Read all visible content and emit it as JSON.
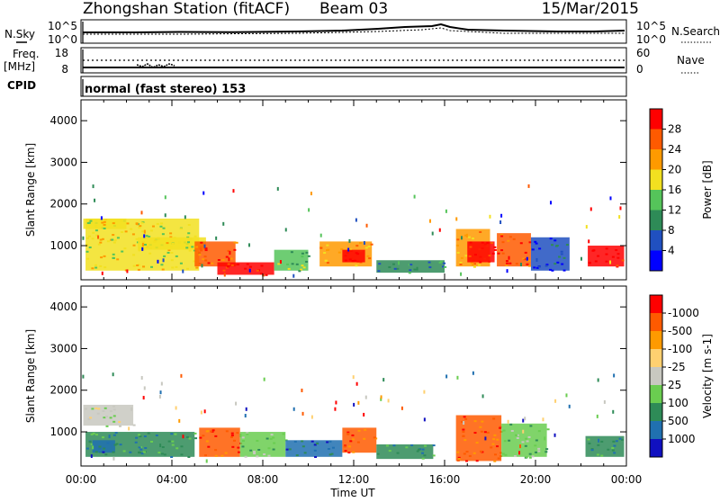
{
  "header": {
    "station": "Zhongshan Station (fitACF)",
    "beam": "Beam 03",
    "date": "15/Mar/2015"
  },
  "panels": {
    "noise": {
      "left_label": "N.Sky",
      "right_label": "N.Search",
      "ticks_left": [
        "10^5",
        "10^0"
      ],
      "ticks_right": [
        "10^5",
        "10^0"
      ]
    },
    "freq": {
      "left_label_1": "Freq.",
      "left_label_2": "[MHz]",
      "ticks_left": [
        "18",
        "8"
      ],
      "right_label": "Nave",
      "ticks_right": [
        "60",
        "0"
      ]
    },
    "cpid": {
      "label": "CPID",
      "text": "normal (fast stereo) 153"
    }
  },
  "chart_data": [
    {
      "type": "heatmap",
      "name": "power",
      "ylabel": "Slant Range [km]",
      "xlabel": "Time UT",
      "ylim": [
        180,
        4500
      ],
      "yticks": [
        "1000",
        "2000",
        "3000",
        "4000"
      ],
      "xticks": [
        "00:00",
        "04:00",
        "08:00",
        "12:00",
        "16:00",
        "20:00",
        "00:00"
      ],
      "colorbar": {
        "title": "Power [dB]",
        "levels": [
          "4",
          "8",
          "12",
          "16",
          "20",
          "24",
          "28"
        ],
        "colors": [
          "#0000ff",
          "#2050c0",
          "#2e8b57",
          "#55c45a",
          "#f2e020",
          "#ff9a00",
          "#ff5a00",
          "#ff0000"
        ]
      },
      "regions": [
        {
          "t0": 0.2,
          "t1": 5.2,
          "r0": 400,
          "r1": 1650,
          "level": 4
        },
        {
          "t0": 0.1,
          "t1": 2.0,
          "r0": 1400,
          "r1": 1650,
          "level": 4
        },
        {
          "t0": 2.5,
          "t1": 5.5,
          "r0": 900,
          "r1": 1200,
          "level": 4
        },
        {
          "t0": 5.0,
          "t1": 6.8,
          "r0": 500,
          "r1": 1100,
          "level": 6
        },
        {
          "t0": 6.0,
          "t1": 8.5,
          "r0": 300,
          "r1": 600,
          "level": 7
        },
        {
          "t0": 8.5,
          "t1": 10.0,
          "r0": 400,
          "r1": 900,
          "level": 3
        },
        {
          "t0": 10.5,
          "t1": 12.8,
          "r0": 500,
          "r1": 1100,
          "level": 5
        },
        {
          "t0": 11.5,
          "t1": 12.5,
          "r0": 600,
          "r1": 900,
          "level": 7
        },
        {
          "t0": 13.0,
          "t1": 16.0,
          "r0": 350,
          "r1": 650,
          "level": 2
        },
        {
          "t0": 16.5,
          "t1": 18.0,
          "r0": 500,
          "r1": 1400,
          "level": 5
        },
        {
          "t0": 17.0,
          "t1": 18.2,
          "r0": 600,
          "r1": 1100,
          "level": 7
        },
        {
          "t0": 18.3,
          "t1": 19.8,
          "r0": 500,
          "r1": 1300,
          "level": 6
        },
        {
          "t0": 19.8,
          "t1": 21.5,
          "r0": 400,
          "r1": 1200,
          "level": 1
        },
        {
          "t0": 22.3,
          "t1": 23.9,
          "r0": 500,
          "r1": 1000,
          "level": 7
        }
      ]
    },
    {
      "type": "heatmap",
      "name": "velocity",
      "ylabel": "Slant Range [km]",
      "xlabel": "Time UT",
      "ylim": [
        180,
        4500
      ],
      "yticks": [
        "1000",
        "2000",
        "3000",
        "4000"
      ],
      "xticks": [
        "00:00",
        "04:00",
        "08:00",
        "12:00",
        "16:00",
        "20:00",
        "00:00"
      ],
      "colorbar": {
        "title": "Velocity [m s-1]",
        "levels": [
          "1000",
          "500",
          "100",
          "25",
          "-25",
          "-100",
          "-500",
          "-1000"
        ],
        "colors": [
          "#1010c0",
          "#2070b0",
          "#2e8b57",
          "#6acd50",
          "#c8c8c0",
          "#ffd070",
          "#ff9a00",
          "#ff5a00",
          "#ff0000"
        ]
      },
      "regions": [
        {
          "t0": 0.1,
          "t1": 2.3,
          "r0": 1150,
          "r1": 1650,
          "level": 4
        },
        {
          "t0": 0.2,
          "t1": 5.0,
          "r0": 400,
          "r1": 1000,
          "level": 2
        },
        {
          "t0": 0.5,
          "t1": 1.5,
          "r0": 500,
          "r1": 800,
          "level": 1
        },
        {
          "t0": 5.2,
          "t1": 7.0,
          "r0": 400,
          "r1": 1100,
          "level": 7
        },
        {
          "t0": 7.0,
          "t1": 9.0,
          "r0": 400,
          "r1": 1000,
          "level": 3
        },
        {
          "t0": 9.0,
          "t1": 11.5,
          "r0": 400,
          "r1": 800,
          "level": 1
        },
        {
          "t0": 11.5,
          "t1": 13.0,
          "r0": 500,
          "r1": 1100,
          "level": 7
        },
        {
          "t0": 13.0,
          "t1": 15.5,
          "r0": 350,
          "r1": 700,
          "level": 2
        },
        {
          "t0": 16.5,
          "t1": 18.5,
          "r0": 300,
          "r1": 1400,
          "level": 7
        },
        {
          "t0": 18.5,
          "t1": 20.5,
          "r0": 400,
          "r1": 1200,
          "level": 3
        },
        {
          "t0": 22.2,
          "t1": 23.9,
          "r0": 400,
          "r1": 900,
          "level": 2
        }
      ]
    }
  ]
}
